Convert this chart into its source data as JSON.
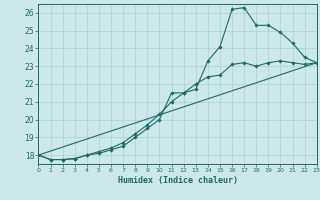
{
  "title": "",
  "xlabel": "Humidex (Indice chaleur)",
  "bg_color": "#cce8e8",
  "grid_color": "#aad0d0",
  "line_color": "#1a6b6b",
  "xlim": [
    0,
    23
  ],
  "ylim": [
    17.5,
    26.5
  ],
  "xticks": [
    0,
    1,
    2,
    3,
    4,
    5,
    6,
    7,
    8,
    9,
    10,
    11,
    12,
    13,
    14,
    15,
    16,
    17,
    18,
    19,
    20,
    21,
    22,
    23
  ],
  "yticks": [
    18,
    19,
    20,
    21,
    22,
    23,
    24,
    25,
    26
  ],
  "line1_x": [
    0,
    1,
    2,
    3,
    4,
    5,
    6,
    7,
    8,
    9,
    10,
    11,
    12,
    13,
    14,
    15,
    16,
    17,
    18,
    19,
    20,
    21,
    22,
    23
  ],
  "line1_y": [
    18.0,
    17.75,
    17.75,
    17.8,
    18.0,
    18.1,
    18.3,
    18.5,
    19.0,
    19.5,
    20.0,
    21.5,
    21.5,
    21.7,
    23.3,
    24.1,
    26.2,
    26.3,
    25.3,
    25.3,
    24.9,
    24.3,
    23.5,
    23.2
  ],
  "line2_x": [
    0,
    1,
    2,
    3,
    4,
    5,
    6,
    7,
    8,
    9,
    10,
    11,
    12,
    13,
    14,
    15,
    16,
    17,
    18,
    19,
    20,
    21,
    22,
    23
  ],
  "line2_y": [
    18.0,
    17.75,
    17.75,
    17.8,
    18.0,
    18.2,
    18.4,
    18.7,
    19.2,
    19.7,
    20.3,
    21.0,
    21.5,
    22.0,
    22.4,
    22.5,
    23.1,
    23.2,
    23.0,
    23.2,
    23.3,
    23.2,
    23.1,
    23.2
  ],
  "line3_x": [
    0,
    23
  ],
  "line3_y": [
    18.0,
    23.2
  ]
}
